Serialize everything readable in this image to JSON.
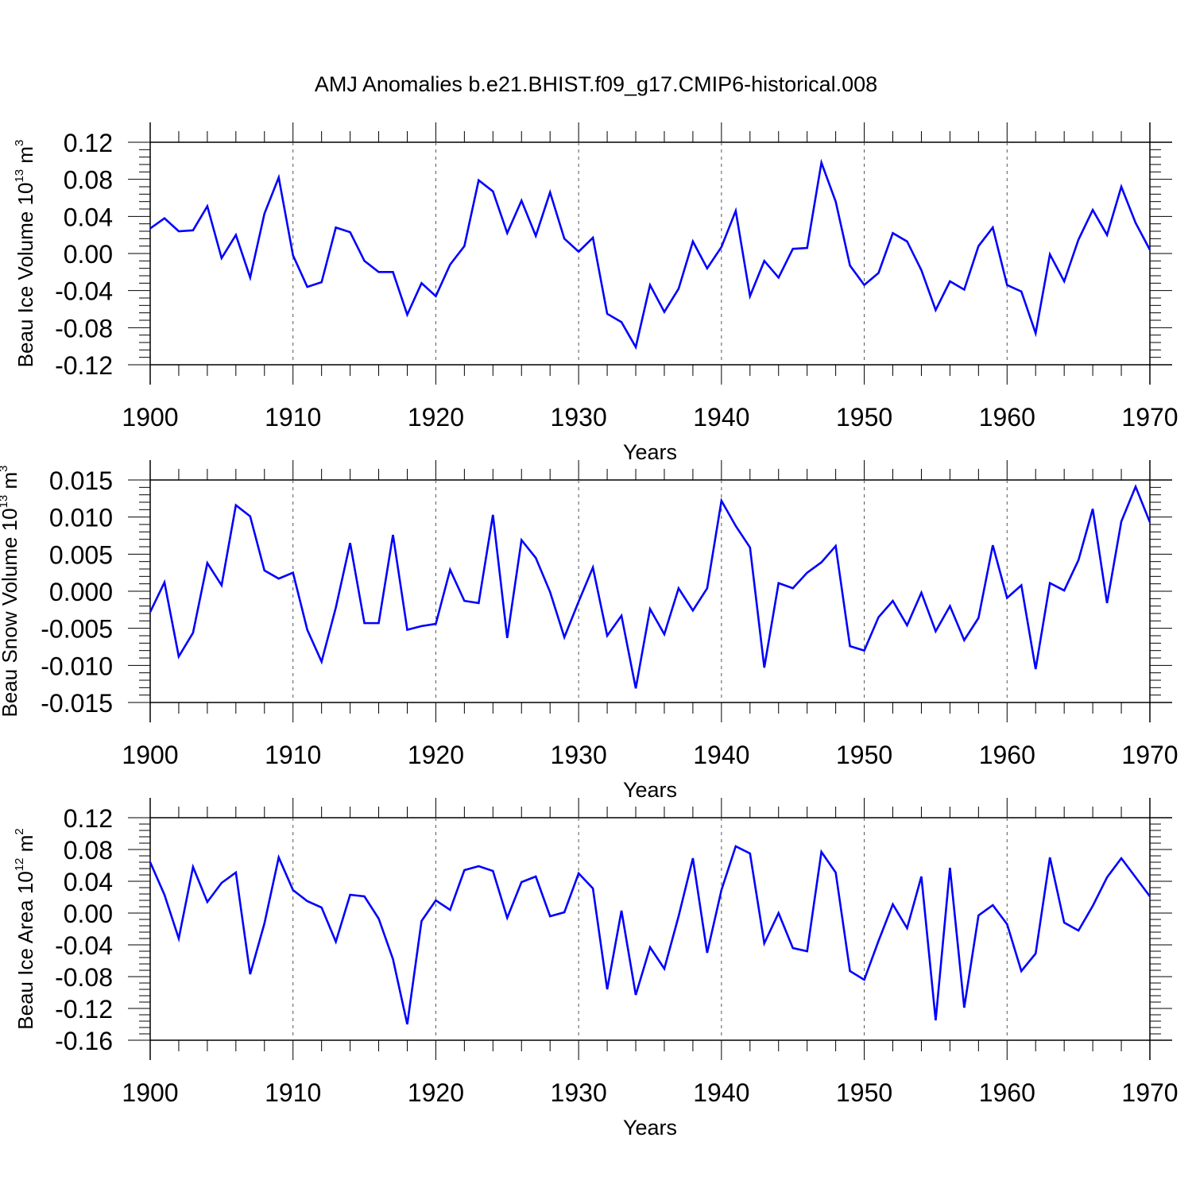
{
  "title": "AMJ Anomalies b.e21.BHIST.f09_g17.CMIP6-historical.008",
  "colors": {
    "line": "#0000ff",
    "axis": "#000000",
    "grid": "#555555"
  },
  "chart_data": [
    {
      "type": "line",
      "name": "ice-volume",
      "ylabel_main": "Beau Ice Volume 10",
      "ylabel_exp": "13",
      "ylabel_unit": " m",
      "ylabel_unit_exp": "3",
      "xlabel": "Years",
      "xlim": [
        1900,
        1970
      ],
      "ylim": [
        -0.12,
        0.12
      ],
      "yticks": [
        -0.12,
        -0.08,
        -0.04,
        0.0,
        0.04,
        0.08,
        0.12
      ],
      "ytick_labels": [
        "-0.12",
        "-0.08",
        "-0.04",
        "0.00",
        "0.04",
        "0.08",
        "0.12"
      ],
      "xticks": [
        1900,
        1910,
        1920,
        1930,
        1940,
        1950,
        1960,
        1970
      ],
      "xtick_labels": [
        "1900",
        "1910",
        "1920",
        "1930",
        "1940",
        "1950",
        "1960",
        "1970"
      ],
      "x_start": 1900,
      "values": [
        0.027,
        0.038,
        0.024,
        0.025,
        0.051,
        -0.005,
        0.02,
        -0.026,
        0.043,
        0.082,
        -0.002,
        -0.036,
        -0.031,
        0.028,
        0.023,
        -0.008,
        -0.02,
        -0.02,
        -0.066,
        -0.032,
        -0.046,
        -0.012,
        0.008,
        0.079,
        0.067,
        0.022,
        0.057,
        0.019,
        0.066,
        0.016,
        0.002,
        0.017,
        -0.065,
        -0.074,
        -0.101,
        -0.034,
        -0.063,
        -0.038,
        0.013,
        -0.016,
        0.007,
        0.046,
        -0.046,
        -0.008,
        -0.026,
        0.005,
        0.006,
        0.098,
        0.056,
        -0.013,
        -0.034,
        -0.021,
        0.022,
        0.013,
        -0.018,
        -0.061,
        -0.03,
        -0.039,
        0.008,
        0.028,
        -0.034,
        -0.041,
        -0.086,
        -0.001,
        -0.03,
        0.015,
        0.047,
        0.02,
        0.072,
        0.033,
        0.004
      ]
    },
    {
      "type": "line",
      "name": "snow-volume",
      "ylabel_main": "Beau Snow Volume 10",
      "ylabel_exp": "13",
      "ylabel_unit": " m",
      "ylabel_unit_exp": "3",
      "xlabel": "Years",
      "xlim": [
        1900,
        1970
      ],
      "ylim": [
        -0.015,
        0.015
      ],
      "yticks": [
        -0.015,
        -0.01,
        -0.005,
        0.0,
        0.005,
        0.01,
        0.015
      ],
      "ytick_labels": [
        "-0.015",
        "-0.010",
        "-0.005",
        "0.000",
        "0.005",
        "0.010",
        "0.015"
      ],
      "xticks": [
        1900,
        1910,
        1920,
        1930,
        1940,
        1950,
        1960,
        1970
      ],
      "xtick_labels": [
        "1900",
        "1910",
        "1920",
        "1930",
        "1940",
        "1950",
        "1960",
        "1970"
      ],
      "x_start": 1900,
      "values": [
        -0.0028,
        0.0012,
        -0.0088,
        -0.0056,
        0.0038,
        0.0008,
        0.0116,
        0.0101,
        0.0028,
        0.0017,
        0.0025,
        -0.0052,
        -0.0095,
        -0.0022,
        0.0065,
        -0.0043,
        -0.0043,
        0.0076,
        -0.0052,
        -0.0047,
        -0.0044,
        0.0029,
        -0.0013,
        -0.0016,
        0.0103,
        -0.0063,
        0.0069,
        0.0045,
        -0.0001,
        -0.0062,
        -0.0014,
        0.0032,
        -0.006,
        -0.0033,
        -0.0131,
        -0.0024,
        -0.0058,
        0.0004,
        -0.0026,
        0.0004,
        0.0122,
        0.0088,
        0.0059,
        -0.0103,
        0.0011,
        0.0004,
        0.0025,
        0.0039,
        0.0061,
        -0.0074,
        -0.008,
        -0.0035,
        -0.0013,
        -0.0046,
        -0.0002,
        -0.0054,
        -0.002,
        -0.0066,
        -0.0036,
        0.0062,
        -0.0009,
        0.0008,
        -0.0105,
        0.0011,
        0.0001,
        0.0042,
        0.0111,
        -0.0016,
        0.0094,
        0.0141,
        0.0093
      ]
    },
    {
      "type": "line",
      "name": "ice-area",
      "ylabel_main": "Beau Ice Area 10",
      "ylabel_exp": "12",
      "ylabel_unit": " m",
      "ylabel_unit_exp": "2",
      "xlabel": "Years",
      "xlim": [
        1900,
        1970
      ],
      "ylim": [
        -0.16,
        0.12
      ],
      "yticks": [
        -0.16,
        -0.12,
        -0.08,
        -0.04,
        0.0,
        0.04,
        0.08,
        0.12
      ],
      "ytick_labels": [
        "-0.16",
        "-0.12",
        "-0.08",
        "-0.04",
        "0.00",
        "0.04",
        "0.08",
        "0.12"
      ],
      "xticks": [
        1900,
        1910,
        1920,
        1930,
        1940,
        1950,
        1960,
        1970
      ],
      "xtick_labels": [
        "1900",
        "1910",
        "1920",
        "1930",
        "1940",
        "1950",
        "1960",
        "1970"
      ],
      "x_start": 1900,
      "values": [
        0.064,
        0.023,
        -0.032,
        0.058,
        0.014,
        0.038,
        0.051,
        -0.077,
        -0.013,
        0.07,
        0.029,
        0.015,
        0.007,
        -0.036,
        0.023,
        0.021,
        -0.007,
        -0.058,
        -0.14,
        -0.01,
        0.016,
        0.004,
        0.054,
        0.059,
        0.053,
        -0.006,
        0.039,
        0.046,
        -0.004,
        0.001,
        0.05,
        0.031,
        -0.096,
        0.003,
        -0.103,
        -0.043,
        -0.07,
        -0.004,
        0.069,
        -0.05,
        0.029,
        0.084,
        0.075,
        -0.038,
        0.0,
        -0.044,
        -0.048,
        0.077,
        0.051,
        -0.073,
        -0.084,
        -0.035,
        0.011,
        -0.019,
        0.046,
        -0.135,
        0.057,
        -0.119,
        -0.003,
        0.01,
        -0.014,
        -0.073,
        -0.051,
        0.07,
        -0.012,
        -0.022,
        0.009,
        0.045,
        0.069,
        0.045,
        0.021
      ]
    }
  ]
}
